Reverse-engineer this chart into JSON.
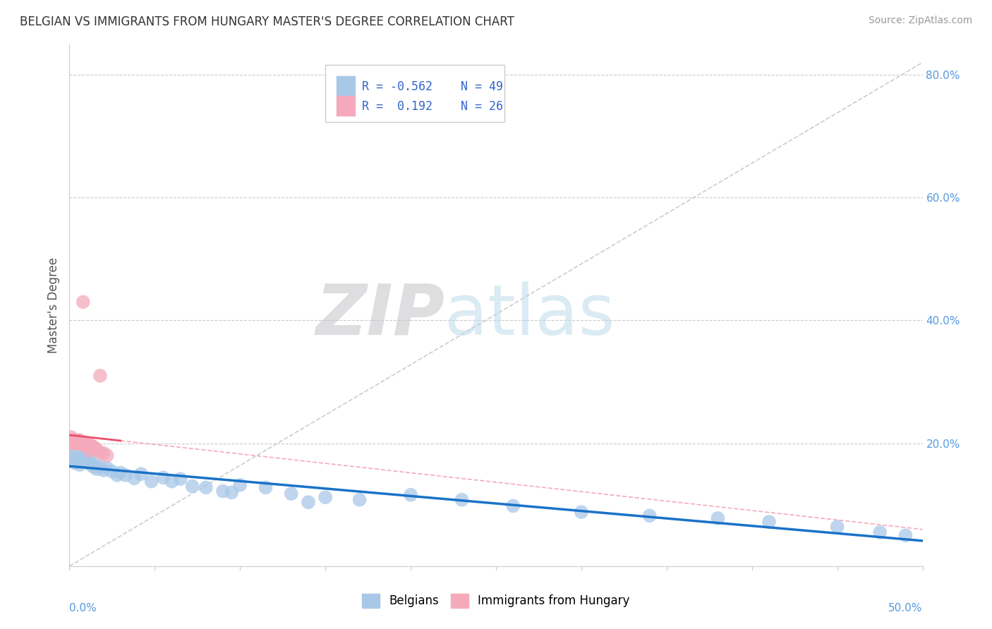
{
  "title": "BELGIAN VS IMMIGRANTS FROM HUNGARY MASTER'S DEGREE CORRELATION CHART",
  "source": "Source: ZipAtlas.com",
  "ylabel": "Master's Degree",
  "legend_blue_label": "Belgians",
  "legend_pink_label": "Immigrants from Hungary",
  "legend_R_blue": "-0.562",
  "legend_N_blue": "49",
  "legend_R_pink": "0.192",
  "legend_N_pink": "26",
  "blue_color": "#a8c8e8",
  "pink_color": "#f4aabb",
  "blue_line_color": "#1a72c8",
  "pink_line_color": "#e8506a",
  "pink_dash_color": "#f4aabb",
  "xmin": 0.0,
  "xmax": 0.5,
  "ymin": 0.0,
  "ymax": 0.85,
  "blue_scatter_x": [
    0.001,
    0.002,
    0.003,
    0.004,
    0.005,
    0.006,
    0.007,
    0.008,
    0.009,
    0.01,
    0.011,
    0.012,
    0.013,
    0.014,
    0.015,
    0.016,
    0.018,
    0.02,
    0.022,
    0.025,
    0.028,
    0.03,
    0.033,
    0.038,
    0.042,
    0.048,
    0.055,
    0.06,
    0.065,
    0.072,
    0.08,
    0.09,
    0.1,
    0.115,
    0.13,
    0.15,
    0.17,
    0.2,
    0.23,
    0.26,
    0.3,
    0.34,
    0.38,
    0.41,
    0.45,
    0.475,
    0.49,
    0.095,
    0.14
  ],
  "blue_scatter_y": [
    0.178,
    0.182,
    0.168,
    0.174,
    0.179,
    0.165,
    0.17,
    0.175,
    0.172,
    0.18,
    0.168,
    0.176,
    0.164,
    0.162,
    0.166,
    0.158,
    0.162,
    0.156,
    0.16,
    0.154,
    0.148,
    0.152,
    0.148,
    0.143,
    0.15,
    0.138,
    0.144,
    0.138,
    0.142,
    0.13,
    0.128,
    0.122,
    0.132,
    0.128,
    0.118,
    0.112,
    0.108,
    0.116,
    0.108,
    0.098,
    0.088,
    0.082,
    0.078,
    0.072,
    0.064,
    0.055,
    0.05,
    0.12,
    0.104
  ],
  "pink_scatter_x": [
    0.001,
    0.001,
    0.002,
    0.002,
    0.003,
    0.004,
    0.005,
    0.005,
    0.006,
    0.006,
    0.007,
    0.007,
    0.008,
    0.009,
    0.01,
    0.011,
    0.012,
    0.013,
    0.014,
    0.015,
    0.016,
    0.018,
    0.02,
    0.022,
    0.018,
    0.008
  ],
  "pink_scatter_y": [
    0.2,
    0.21,
    0.205,
    0.2,
    0.205,
    0.2,
    0.205,
    0.2,
    0.2,
    0.205,
    0.198,
    0.202,
    0.198,
    0.2,
    0.196,
    0.2,
    0.188,
    0.196,
    0.194,
    0.192,
    0.19,
    0.185,
    0.184,
    0.18,
    0.31,
    0.43
  ],
  "grid_ticks": [
    0.0,
    0.2,
    0.4,
    0.6,
    0.8
  ],
  "right_labels": [
    "",
    "20.0%",
    "40.0%",
    "60.0%",
    "80.0%"
  ]
}
